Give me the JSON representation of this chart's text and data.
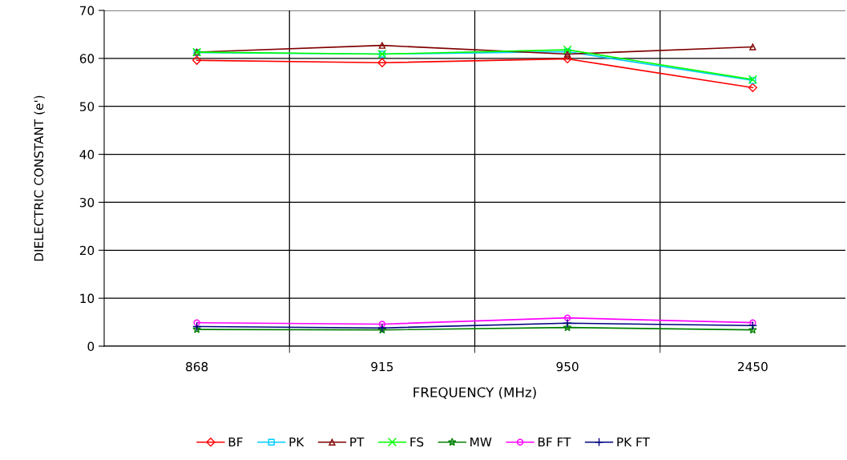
{
  "chart_data": {
    "type": "line",
    "xlabel": "FREQUENCY (MHz)",
    "ylabel": "DIELECTRIC CONSTANT (e')",
    "categories": [
      "868",
      "915",
      "950",
      "2450"
    ],
    "series": [
      {
        "name": "BF",
        "color": "#ff0000",
        "marker": "diamond",
        "values": [
          59.6,
          59.1,
          59.9,
          53.9
        ]
      },
      {
        "name": "PK",
        "color": "#00ccff",
        "marker": "square",
        "values": [
          61.2,
          60.9,
          61.4,
          55.4
        ]
      },
      {
        "name": "PT",
        "color": "#800000",
        "marker": "triangle",
        "values": [
          61.3,
          62.7,
          60.9,
          62.4
        ]
      },
      {
        "name": "FS",
        "color": "#00ff00",
        "marker": "cross",
        "values": [
          61.3,
          60.9,
          61.8,
          55.6
        ]
      },
      {
        "name": "MW",
        "color": "#008000",
        "marker": "star",
        "values": [
          3.5,
          3.4,
          3.9,
          3.4
        ]
      },
      {
        "name": "BF FT",
        "color": "#ff00ff",
        "marker": "circle",
        "values": [
          4.9,
          4.6,
          5.9,
          4.9
        ]
      },
      {
        "name": "PK FT",
        "color": "#000080",
        "marker": "plus",
        "values": [
          4.1,
          3.8,
          4.8,
          4.3
        ]
      }
    ],
    "ylim": [
      0,
      70
    ],
    "yticks": [
      0,
      10,
      20,
      30,
      40,
      50,
      60,
      70
    ],
    "grid": true,
    "legend": "bottom"
  }
}
